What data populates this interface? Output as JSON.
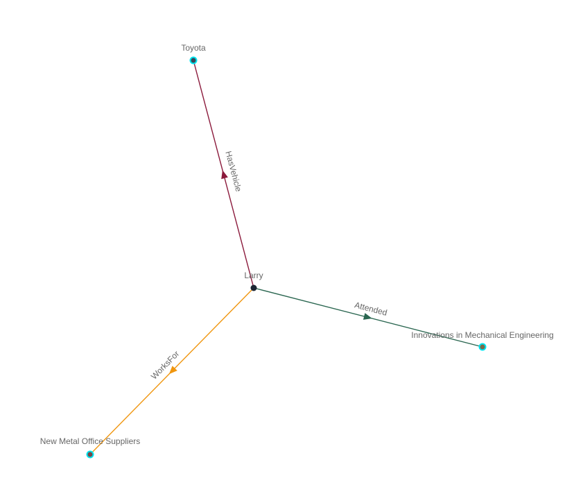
{
  "graph": {
    "nodes": [
      {
        "id": "larry",
        "label": "Larry",
        "fill": "#1b2533",
        "ring": null
      },
      {
        "id": "toyota",
        "label": "Toyota",
        "fill": "#3b4656",
        "ring": "#00e5f0"
      },
      {
        "id": "innov",
        "label": "Innovations in Mechanical Engineering",
        "fill": "#7a6a4a",
        "ring": "#00e5f0"
      },
      {
        "id": "nmos",
        "label": "New Metal Office Suppliers",
        "fill": "#7a4646",
        "ring": "#00e5f0"
      }
    ],
    "edges": [
      {
        "source": "larry",
        "target": "toyota",
        "label": "HasVehicle",
        "color": "#8b1a3c"
      },
      {
        "source": "larry",
        "target": "innov",
        "label": "Attended",
        "color": "#2a6650"
      },
      {
        "source": "larry",
        "target": "nmos",
        "label": "WorksFor",
        "color": "#f0960f"
      }
    ]
  }
}
